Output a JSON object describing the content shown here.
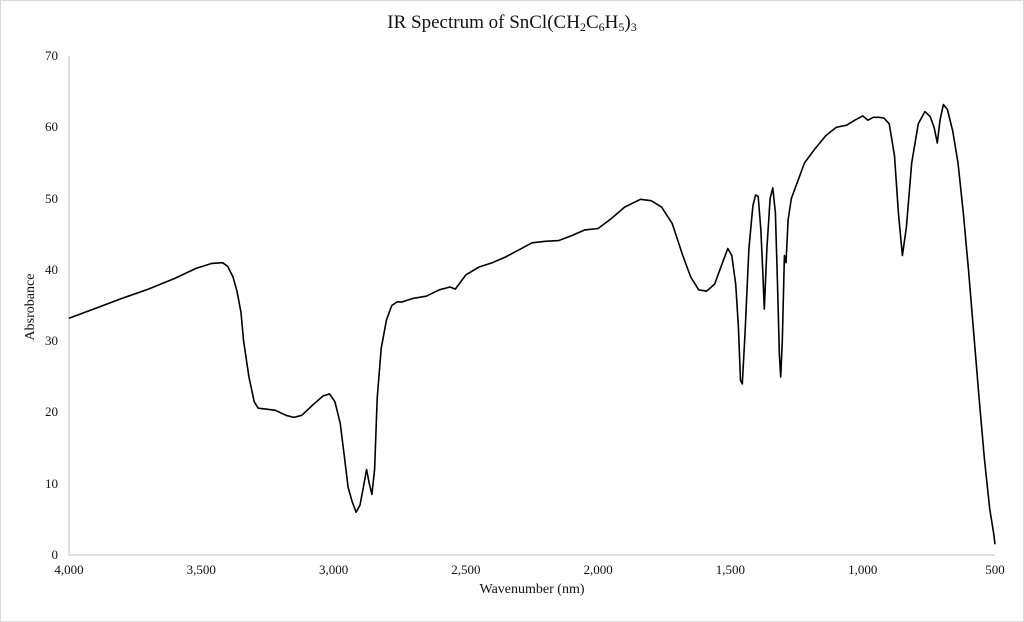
{
  "chart_data": {
    "type": "line",
    "title": "IR Spectrum of SnCl(CH2C6H5)3",
    "title_parts": {
      "main": "IR Spectrum of SnCl(CH",
      "s1": "2",
      "m2": "C",
      "s2": "6",
      "m3": "H",
      "s3": "5",
      "m4": ")",
      "s4": "3"
    },
    "xlabel": "Wavenumber (nm)",
    "ylabel": "Absrobance",
    "xlim": [
      4000,
      500
    ],
    "ylim": [
      0,
      70
    ],
    "x_reversed": true,
    "grid": false,
    "legend": "none",
    "x_ticks": [
      "4,000",
      "3,500",
      "3,000",
      "2,500",
      "2,000",
      "1,500",
      "1,000",
      "500"
    ],
    "x_tick_values": [
      4000,
      3500,
      3000,
      2500,
      2000,
      1500,
      1000,
      500
    ],
    "y_ticks": [
      "0",
      "10",
      "20",
      "30",
      "40",
      "50",
      "60",
      "70"
    ],
    "y_tick_values": [
      0,
      10,
      20,
      30,
      40,
      50,
      60,
      70
    ],
    "series": [
      {
        "name": "SnCl(CH2C6H5)3",
        "color": "#000000",
        "x": [
          4000,
          3900,
          3800,
          3700,
          3600,
          3520,
          3460,
          3420,
          3400,
          3380,
          3365,
          3350,
          3340,
          3320,
          3300,
          3285,
          3260,
          3220,
          3180,
          3150,
          3120,
          3080,
          3040,
          3015,
          2995,
          2975,
          2960,
          2945,
          2930,
          2915,
          2900,
          2885,
          2875,
          2865,
          2855,
          2845,
          2835,
          2820,
          2800,
          2780,
          2760,
          2740,
          2700,
          2650,
          2600,
          2560,
          2540,
          2500,
          2450,
          2400,
          2350,
          2300,
          2250,
          2200,
          2150,
          2100,
          2050,
          2000,
          1950,
          1900,
          1840,
          1800,
          1760,
          1720,
          1680,
          1650,
          1620,
          1590,
          1560,
          1530,
          1510,
          1495,
          1480,
          1470,
          1462,
          1455,
          1445,
          1430,
          1415,
          1405,
          1395,
          1385,
          1378,
          1372,
          1362,
          1350,
          1340,
          1330,
          1322,
          1315,
          1310,
          1304,
          1296,
          1290,
          1282,
          1270,
          1250,
          1220,
          1180,
          1140,
          1100,
          1060,
          1030,
          1000,
          980,
          960,
          940,
          920,
          900,
          880,
          865,
          850,
          835,
          815,
          790,
          765,
          745,
          730,
          718,
          708,
          695,
          680,
          660,
          640,
          620,
          600,
          580,
          560,
          540,
          520,
          505,
          500
        ],
        "y": [
          33.2,
          34.6,
          36.0,
          37.3,
          38.8,
          40.2,
          40.9,
          41.0,
          40.5,
          39.0,
          37.0,
          34.0,
          30.0,
          25.0,
          21.5,
          20.6,
          20.5,
          20.3,
          19.6,
          19.3,
          19.6,
          21.0,
          22.3,
          22.6,
          21.5,
          18.5,
          14.0,
          9.5,
          7.5,
          6.0,
          7.0,
          10.0,
          12.0,
          10.0,
          8.5,
          12.0,
          22.0,
          29.0,
          33.0,
          35.0,
          35.5,
          35.5,
          36.0,
          36.3,
          37.2,
          37.6,
          37.3,
          39.3,
          40.4,
          41.0,
          41.8,
          42.8,
          43.8,
          44.0,
          44.1,
          44.8,
          45.6,
          45.8,
          47.2,
          48.8,
          49.9,
          49.7,
          48.8,
          46.5,
          42.0,
          39.0,
          37.2,
          37.0,
          38.0,
          41.0,
          43.0,
          42.0,
          38.0,
          32.0,
          24.5,
          24.0,
          31.0,
          43.0,
          49.0,
          50.5,
          50.3,
          45.5,
          40.0,
          34.5,
          43.0,
          50.0,
          51.5,
          48.0,
          38.0,
          28.0,
          25.0,
          30.0,
          42.0,
          41.0,
          47.0,
          50.0,
          52.0,
          55.0,
          57.0,
          58.8,
          60.0,
          60.3,
          61.0,
          61.6,
          61.0,
          61.4,
          61.4,
          61.3,
          60.5,
          56.0,
          48.0,
          42.0,
          46.0,
          55.0,
          60.5,
          62.2,
          61.5,
          60.0,
          57.8,
          61.0,
          63.2,
          62.5,
          59.5,
          55.0,
          48.0,
          40.0,
          31.0,
          22.0,
          13.5,
          6.5,
          3.0,
          1.5
        ]
      }
    ]
  }
}
